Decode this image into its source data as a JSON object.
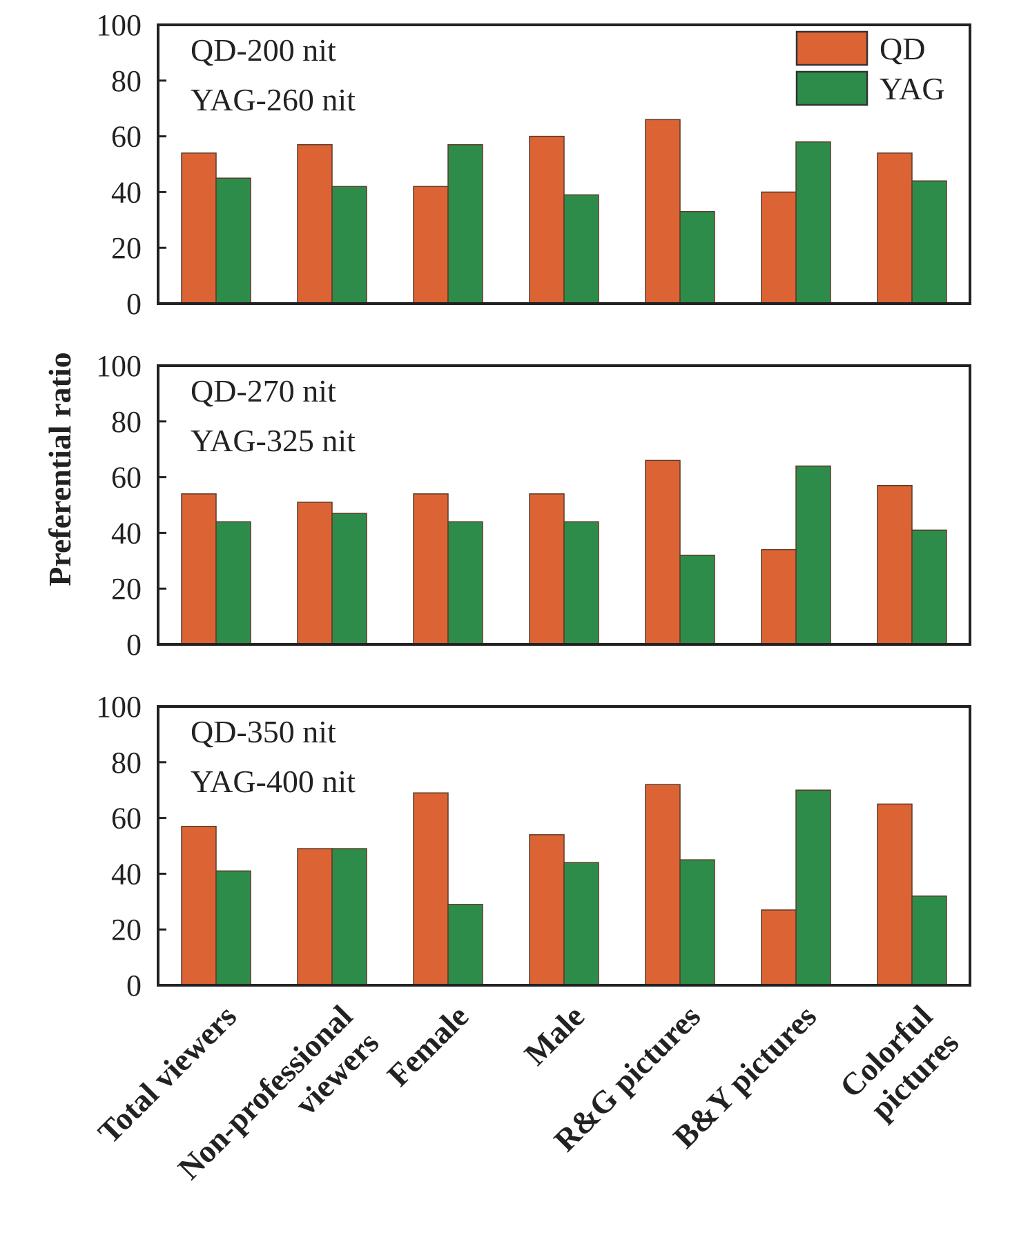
{
  "chart_data": {
    "type": "bar",
    "ylabel": "Preferential ratio",
    "categories": [
      "Total viewers",
      "Non-professional viewers",
      "Female",
      "Male",
      "R&G pictures",
      "B&Y pictures",
      "Colorful pictures"
    ],
    "category_lines": [
      [
        "Total viewers"
      ],
      [
        "Non-professional",
        "viewers"
      ],
      [
        "Female"
      ],
      [
        "Male"
      ],
      [
        "R&G pictures"
      ],
      [
        "B&Y pictures"
      ],
      [
        "Colorful",
        "pictures"
      ]
    ],
    "ylim": [
      0,
      100
    ],
    "yticks": [
      0,
      20,
      40,
      60,
      80,
      100
    ],
    "legend": {
      "placement": "top-right of first panel",
      "entries": [
        {
          "name": "QD",
          "color": "#dc6434"
        },
        {
          "name": "YAG",
          "color": "#2e8c4a"
        }
      ]
    },
    "panels": [
      {
        "label_lines": [
          "QD-200 nit",
          "YAG-260 nit"
        ],
        "series": [
          {
            "name": "QD",
            "color": "#dc6434",
            "values": [
              54,
              57,
              42,
              60,
              66,
              40,
              54
            ]
          },
          {
            "name": "YAG",
            "color": "#2e8c4a",
            "values": [
              45,
              42,
              57,
              39,
              33,
              58,
              44
            ]
          }
        ]
      },
      {
        "label_lines": [
          "QD-270 nit",
          "YAG-325 nit"
        ],
        "series": [
          {
            "name": "QD",
            "color": "#dc6434",
            "values": [
              54,
              51,
              54,
              54,
              66,
              34,
              57
            ]
          },
          {
            "name": "YAG",
            "color": "#2e8c4a",
            "values": [
              44,
              47,
              44,
              44,
              32,
              64,
              41
            ]
          }
        ]
      },
      {
        "label_lines": [
          "QD-350 nit",
          "YAG-400 nit"
        ],
        "series": [
          {
            "name": "QD",
            "color": "#dc6434",
            "values": [
              57,
              49,
              69,
              54,
              72,
              27,
              65
            ]
          },
          {
            "name": "YAG",
            "color": "#2e8c4a",
            "values": [
              41,
              49,
              29,
              44,
              45,
              70,
              32
            ]
          }
        ]
      }
    ]
  }
}
